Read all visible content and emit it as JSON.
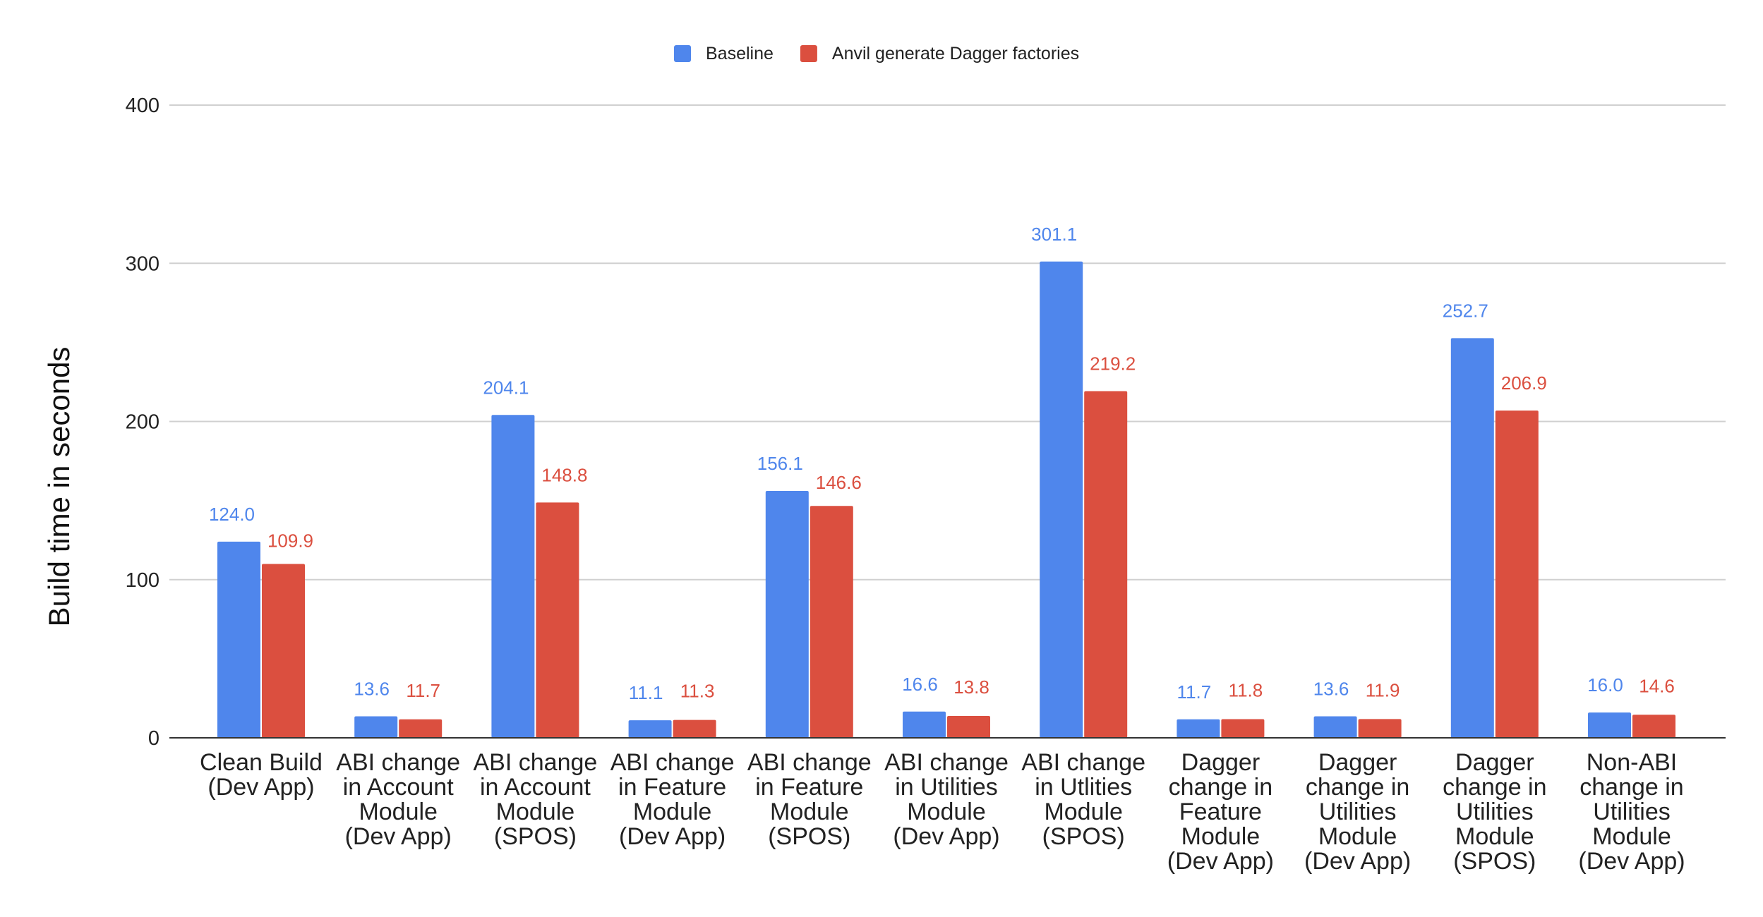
{
  "chart_data": {
    "type": "bar",
    "title": "",
    "xlabel": "",
    "ylabel": "Build time in seconds",
    "ylim": [
      0,
      400
    ],
    "yticks": [
      0,
      100,
      200,
      300,
      400
    ],
    "grid": true,
    "legend_position": "top",
    "categories": [
      [
        "Clean Build",
        "(Dev App)"
      ],
      [
        "ABI change",
        "in Account",
        "Module",
        "(Dev App)"
      ],
      [
        "ABI change",
        "in Account",
        "Module",
        "(SPOS)"
      ],
      [
        "ABI change",
        "in Feature",
        "Module",
        "(Dev App)"
      ],
      [
        "ABI change",
        "in Feature",
        "Module",
        "(SPOS)"
      ],
      [
        "ABI change",
        "in Utilities",
        "Module",
        "(Dev App)"
      ],
      [
        "ABI change",
        "in Utlities",
        "Module",
        "(SPOS)"
      ],
      [
        "Dagger",
        "change in",
        "Feature",
        "Module",
        "(Dev App)"
      ],
      [
        "Dagger",
        "change in",
        "Utilities",
        "Module",
        "(Dev App)"
      ],
      [
        "Dagger",
        "change in",
        "Utilities",
        "Module",
        "(SPOS)"
      ],
      [
        "Non-ABI",
        "change in",
        "Utilities",
        "Module",
        "(Dev App)"
      ]
    ],
    "series": [
      {
        "name": "Baseline",
        "color": "#4f86ec",
        "values": [
          124.0,
          13.6,
          204.1,
          11.1,
          156.1,
          16.6,
          301.1,
          11.7,
          13.6,
          252.7,
          16.0
        ],
        "labels": [
          "124.0",
          "13.6",
          "204.1",
          "11.1",
          "156.1",
          "16.6",
          "301.1",
          "11.7",
          "13.6",
          "252.7",
          "16.0"
        ]
      },
      {
        "name": "Anvil generate Dagger factories",
        "color": "#db4f3f",
        "values": [
          109.9,
          11.7,
          148.8,
          11.3,
          146.6,
          13.8,
          219.2,
          11.8,
          11.9,
          206.9,
          14.6
        ],
        "labels": [
          "109.9",
          "11.7",
          "148.8",
          "11.3",
          "146.6",
          "13.8",
          "219.2",
          "11.8",
          "11.9",
          "206.9",
          "14.6"
        ]
      }
    ]
  }
}
